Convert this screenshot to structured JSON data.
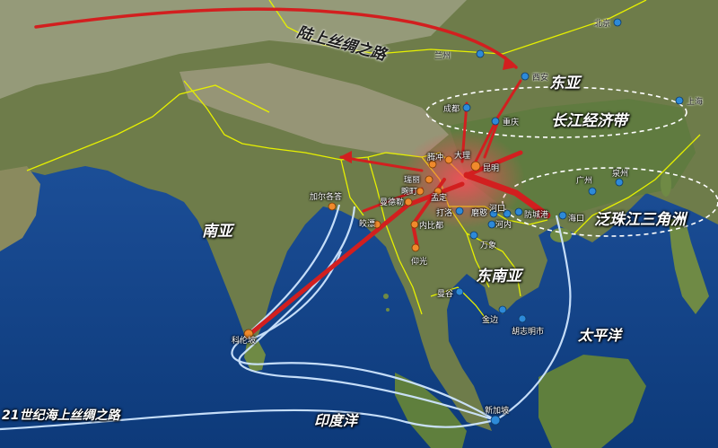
{
  "colors": {
    "ocean": "#13468f",
    "land": "#6f7d48",
    "mountain": "#a8a08a",
    "border": "#e6f000",
    "overland_route": "#d21f1f",
    "maritime_route": "#cfe6ff",
    "node_orange": "#f08a2c",
    "node_blue": "#2d8ad8"
  },
  "routes": {
    "overland": {
      "name": "陆上丝绸之路",
      "color": "#d21f1f"
    },
    "maritime": {
      "name": "21世纪海上丝绸之路",
      "color": "#cfe6ff"
    }
  },
  "regions": {
    "east_asia": "东亚",
    "south_asia": "南亚",
    "southeast_asia": "东南亚",
    "pacific": "太平洋",
    "indian_ocean": "印度洋",
    "yangtze_belt": "长江经济带",
    "pearl_delta": "泛珠江三角洲"
  },
  "cities": {
    "beijing": "北京",
    "lanzhou": "兰州",
    "xian": "西安",
    "chengdu": "成都",
    "chongqing": "重庆",
    "shanghai": "上海",
    "guangzhou": "广州",
    "quanzhou": "泉州",
    "haikou": "海口",
    "kunming": "昆明",
    "dali": "大理",
    "tengchong": "腾冲",
    "ruili": "瑞丽",
    "wanding": "畹町",
    "mengding": "孟定",
    "mohan": "磨憨",
    "daluo": "打洛",
    "hekou": "河口",
    "fangchenggang": "防城港",
    "hanoi": "河内",
    "vientiane": "万象",
    "bangkok": "曼谷",
    "phnompenh": "金边",
    "hochiminh": "胡志明市",
    "singapore": "新加坡",
    "mandalay": "曼德勒",
    "chittagong": "吉大港",
    "kolkata": "加尔各答",
    "kyaukpyu": "皎漂",
    "yangon": "仰光",
    "colombo": "科伦坡",
    "nay_pyi_taw": "内比都"
  }
}
